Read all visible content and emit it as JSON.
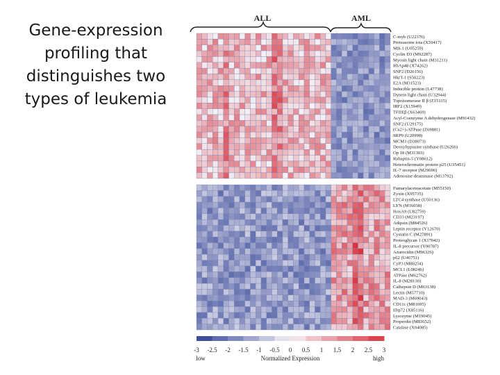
{
  "slide": {
    "title": "Gene-expression\nprofiling that\ndistinguishes two\ntypes of leukemia"
  },
  "heatmap": {
    "group_labels": {
      "left": "ALL",
      "right": "AML"
    },
    "left_columns": 25,
    "right_columns": 11,
    "top_genes": [
      "C-myb (U22376)",
      "Proteasome iota (X59417)",
      "MB-1 (U05259)",
      "Cyclin D3 (M92287)",
      "Myosin light chain (M31211)",
      "RbAp48 (X74262)",
      "SNF2 (D26156)",
      "HkrT-1 (S50223)",
      "E2A (M31523)",
      "Inducible protein (L47738)",
      "Dynein light chain (U32944)",
      "Topoisomerase II β (Z15115)",
      "IRF2 (X15949)",
      "TFIIEβ (X63469)",
      "Acyl-Coenzyme A dehydrogenase (M91432)",
      "SNF2 (U29175)",
      "(Ca2+)-ATPase (Z69881)",
      "SRP9 (U20998)",
      "MCM3 (D38073)",
      "Deoxyhypusine synthase (U26266)",
      "Op 18 (M31303)",
      "Rabaptin-5 (Y08612)",
      "Heterochromatin protein p25 (U35451)",
      "IL-7 receptor (M29696)",
      "Adenosine deaminase (M13792)"
    ],
    "bottom_genes": [
      "Fumarylacetoacetate (M55150)",
      "Zyxin (X95735)",
      "LTC4 synthase (U50136)",
      "LYN (M16038)",
      "HoxA9 (U82759)",
      "CD33 (M23197)",
      "Adipsin (M84526)",
      "Leptin receptor (Y12670)",
      "Cystatin C (M27891)",
      "Proteoglycan 1 (X17042)",
      "IL-8 precursor (Y00787)",
      "Azurocidin (M96326)",
      "p62 (U46751)",
      "CyP3 (M80254)",
      "MCL1 (L08246)",
      "ATPase (M62762)",
      "IL-8 (M28130)",
      "Cathepsin D (M63138)",
      "Lectin (M57710)",
      "MAD-3 (M69043)",
      "CD11c (M81695)",
      "Ebp72 (X85116)",
      "Lysozyme (M19045)",
      "Properdin (M83652)",
      "Catalase (X04085)"
    ],
    "colorbar": {
      "ticks": [
        "-3",
        "-2.5",
        "-2",
        "-1.5",
        "-1",
        "-0.5",
        "0",
        "0.5",
        "1",
        "1.5",
        "2",
        "2.5",
        "3"
      ],
      "low_label": "low",
      "title": "Normalized Expression",
      "high_label": "high"
    },
    "colors": {
      "low": "#2d3f95",
      "mid": "#f4f1f6",
      "high": "#d9333f",
      "grid": "#7a86b0"
    }
  }
}
